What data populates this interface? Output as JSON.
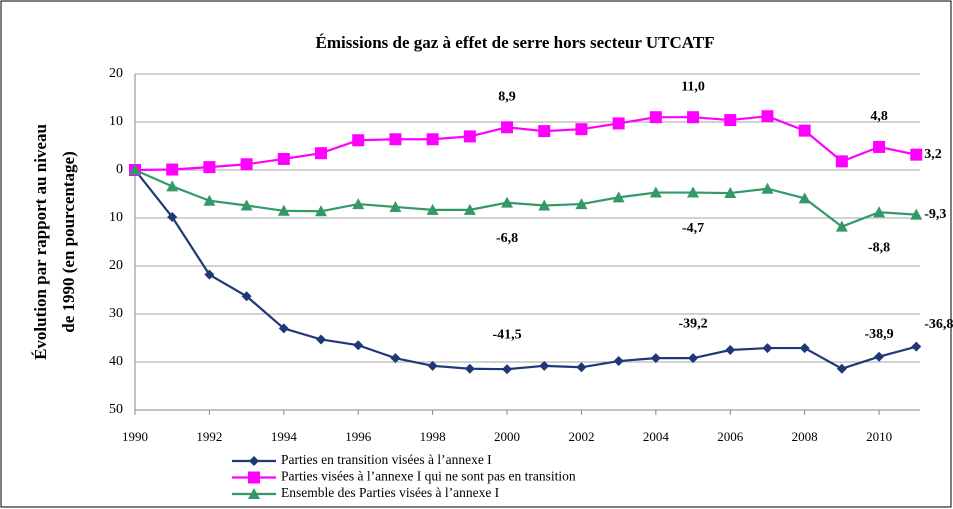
{
  "chart_data": {
    "type": "line",
    "title": "Émissions de gaz à effet de serre hors secteur UTCATF",
    "ylabel": [
      "Évolution par rapport au niveau",
      "de 1990 (en pourcentage)"
    ],
    "x": [
      1990,
      1991,
      1992,
      1993,
      1994,
      1995,
      1996,
      1997,
      1998,
      1999,
      2000,
      2001,
      2002,
      2003,
      2004,
      2005,
      2006,
      2007,
      2008,
      2009,
      2010,
      2011
    ],
    "xlim": [
      1990,
      2011.1
    ],
    "xticks": [
      1990,
      1992,
      1994,
      1996,
      1998,
      2000,
      2002,
      2004,
      2006,
      2008,
      2010
    ],
    "ylim": [
      -50,
      20
    ],
    "yticks": [
      20,
      10,
      0,
      {
        "value": -10,
        "label": "10"
      },
      {
        "value": -20,
        "label": "20"
      },
      {
        "value": -30,
        "label": "30"
      },
      {
        "value": -40,
        "label": "40"
      },
      {
        "value": -50,
        "label": "50"
      }
    ],
    "grid": true,
    "legend": "bottom",
    "series": [
      {
        "name": "Parties en transition visées à l’annexe I",
        "color": "#1f3878",
        "marker": "diamond",
        "values": [
          0,
          -9.8,
          -21.8,
          -26.3,
          -33,
          -35.3,
          -36.5,
          -39.2,
          -40.8,
          -41.4,
          -41.5,
          -40.8,
          -41.1,
          -39.8,
          -39.2,
          -39.2,
          -37.5,
          -37.1,
          -37.1,
          -41.4,
          -38.9,
          -36.8
        ],
        "value_labels": [
          null,
          null,
          null,
          null,
          null,
          null,
          null,
          null,
          null,
          null,
          "-41,5",
          null,
          null,
          null,
          null,
          "-39,2",
          null,
          null,
          null,
          null,
          "-38,9",
          "-36,8"
        ]
      },
      {
        "name": "Parties visées à l’annexe I qui ne sont pas en transition",
        "color": "#ff00ff",
        "marker": "square",
        "values": [
          0,
          0.1,
          0.6,
          1.2,
          2.3,
          3.5,
          6.2,
          6.4,
          6.4,
          7.0,
          8.9,
          8.1,
          8.5,
          9.7,
          11.0,
          11.0,
          10.4,
          11.2,
          8.2,
          1.8,
          4.8,
          3.2
        ],
        "value_labels": [
          null,
          null,
          null,
          null,
          null,
          null,
          null,
          null,
          null,
          null,
          "8,9",
          null,
          null,
          null,
          null,
          "11,0",
          null,
          null,
          null,
          null,
          "4,8",
          "3,2"
        ]
      },
      {
        "name": "Ensemble des Parties visées à l’annexe I",
        "color": "#339966",
        "marker": "triangle",
        "values": [
          0,
          -3.4,
          -6.4,
          -7.4,
          -8.5,
          -8.6,
          -7.1,
          -7.7,
          -8.3,
          -8.3,
          -6.8,
          -7.4,
          -7.1,
          -5.7,
          -4.7,
          -4.7,
          -4.8,
          -3.9,
          -5.9,
          -11.8,
          -8.8,
          -9.3
        ],
        "value_labels": [
          null,
          null,
          null,
          null,
          null,
          null,
          null,
          null,
          null,
          null,
          "-6,8",
          null,
          null,
          null,
          null,
          "-4,7",
          null,
          null,
          null,
          null,
          "-8,8",
          "-9,3"
        ]
      }
    ]
  }
}
